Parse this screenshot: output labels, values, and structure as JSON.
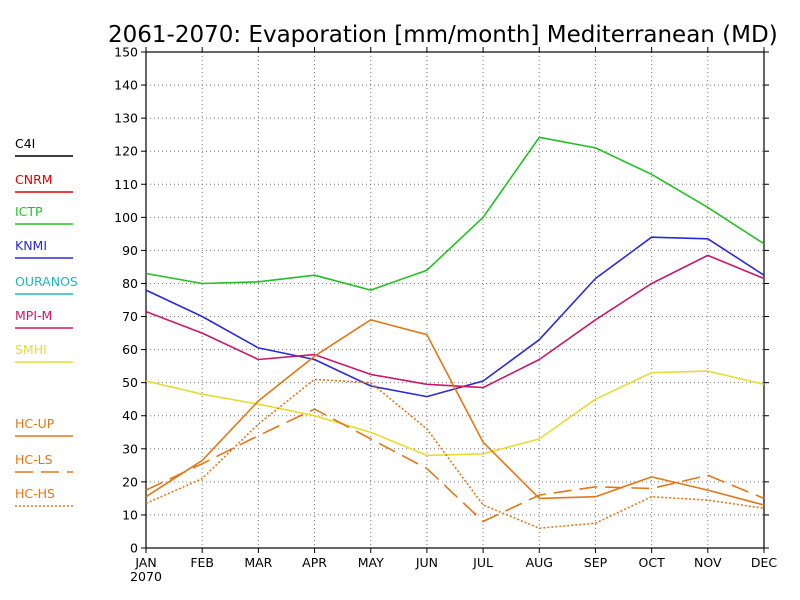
{
  "chart_data": {
    "type": "line",
    "title": "2061-2070: Evaporation [mm/month] Mediterranean (MD)",
    "categories": [
      "JAN",
      "FEB",
      "MAR",
      "APR",
      "MAY",
      "JUN",
      "JUL",
      "AUG",
      "SEP",
      "OCT",
      "NOV",
      "DEC"
    ],
    "x_sublabel": "2070",
    "ylim": [
      0,
      150
    ],
    "yticks": [
      0,
      10,
      20,
      30,
      40,
      50,
      60,
      70,
      80,
      90,
      100,
      110,
      120,
      130,
      140,
      150
    ],
    "grid": true,
    "legend_position": "left",
    "series": [
      {
        "name": "C4I",
        "color": "#000000",
        "dash": "solid",
        "values": [
          null,
          null,
          null,
          null,
          null,
          null,
          null,
          null,
          null,
          null,
          null,
          null
        ]
      },
      {
        "name": "CNRM",
        "color": "#e00000",
        "dash": "solid",
        "values": [
          null,
          null,
          null,
          null,
          null,
          null,
          null,
          null,
          null,
          null,
          null,
          null
        ]
      },
      {
        "name": "ICTP",
        "color": "#22c022",
        "dash": "solid",
        "values": [
          83,
          80,
          80.5,
          82.5,
          78,
          84,
          100,
          124.2,
          121,
          113,
          103,
          92
        ]
      },
      {
        "name": "KNMI",
        "color": "#2a2ad8",
        "dash": "solid",
        "values": [
          78,
          70,
          60.5,
          57,
          49,
          45.8,
          50.5,
          63,
          81.5,
          94,
          93.5,
          82.5
        ]
      },
      {
        "name": "OURANOS",
        "color": "#20b8b8",
        "dash": "solid",
        "values": [
          null,
          null,
          null,
          null,
          null,
          null,
          null,
          null,
          null,
          null,
          null,
          null
        ]
      },
      {
        "name": "MPI-M",
        "color": "#c8186c",
        "dash": "solid",
        "values": [
          71.5,
          65,
          57,
          58.5,
          52.5,
          49.5,
          48.5,
          57,
          69,
          80,
          88.5,
          81.5
        ]
      },
      {
        "name": "SMHI",
        "color": "#e6dc32",
        "dash": "solid",
        "values": [
          50.5,
          46.5,
          43.5,
          40,
          35,
          28,
          28.5,
          33,
          45,
          53,
          53.5,
          49.5
        ]
      },
      {
        "name": "HC-UP",
        "color": "#e07818",
        "dash": "solid",
        "values": [
          15.5,
          26.5,
          44.5,
          58,
          69,
          64.5,
          32,
          15,
          15.5,
          21.5,
          17.5,
          13
        ]
      },
      {
        "name": "HC-LS",
        "color": "#e07818",
        "dash": "longdash",
        "values": [
          17.5,
          25.5,
          34,
          42,
          33,
          24,
          8,
          16,
          18.5,
          18,
          22,
          15
        ]
      },
      {
        "name": "HC-HS",
        "color": "#e07818",
        "dash": "dotted",
        "values": [
          13.5,
          21,
          37.5,
          51,
          50,
          36,
          13,
          6,
          7.5,
          15.5,
          14.5,
          12
        ]
      }
    ]
  }
}
